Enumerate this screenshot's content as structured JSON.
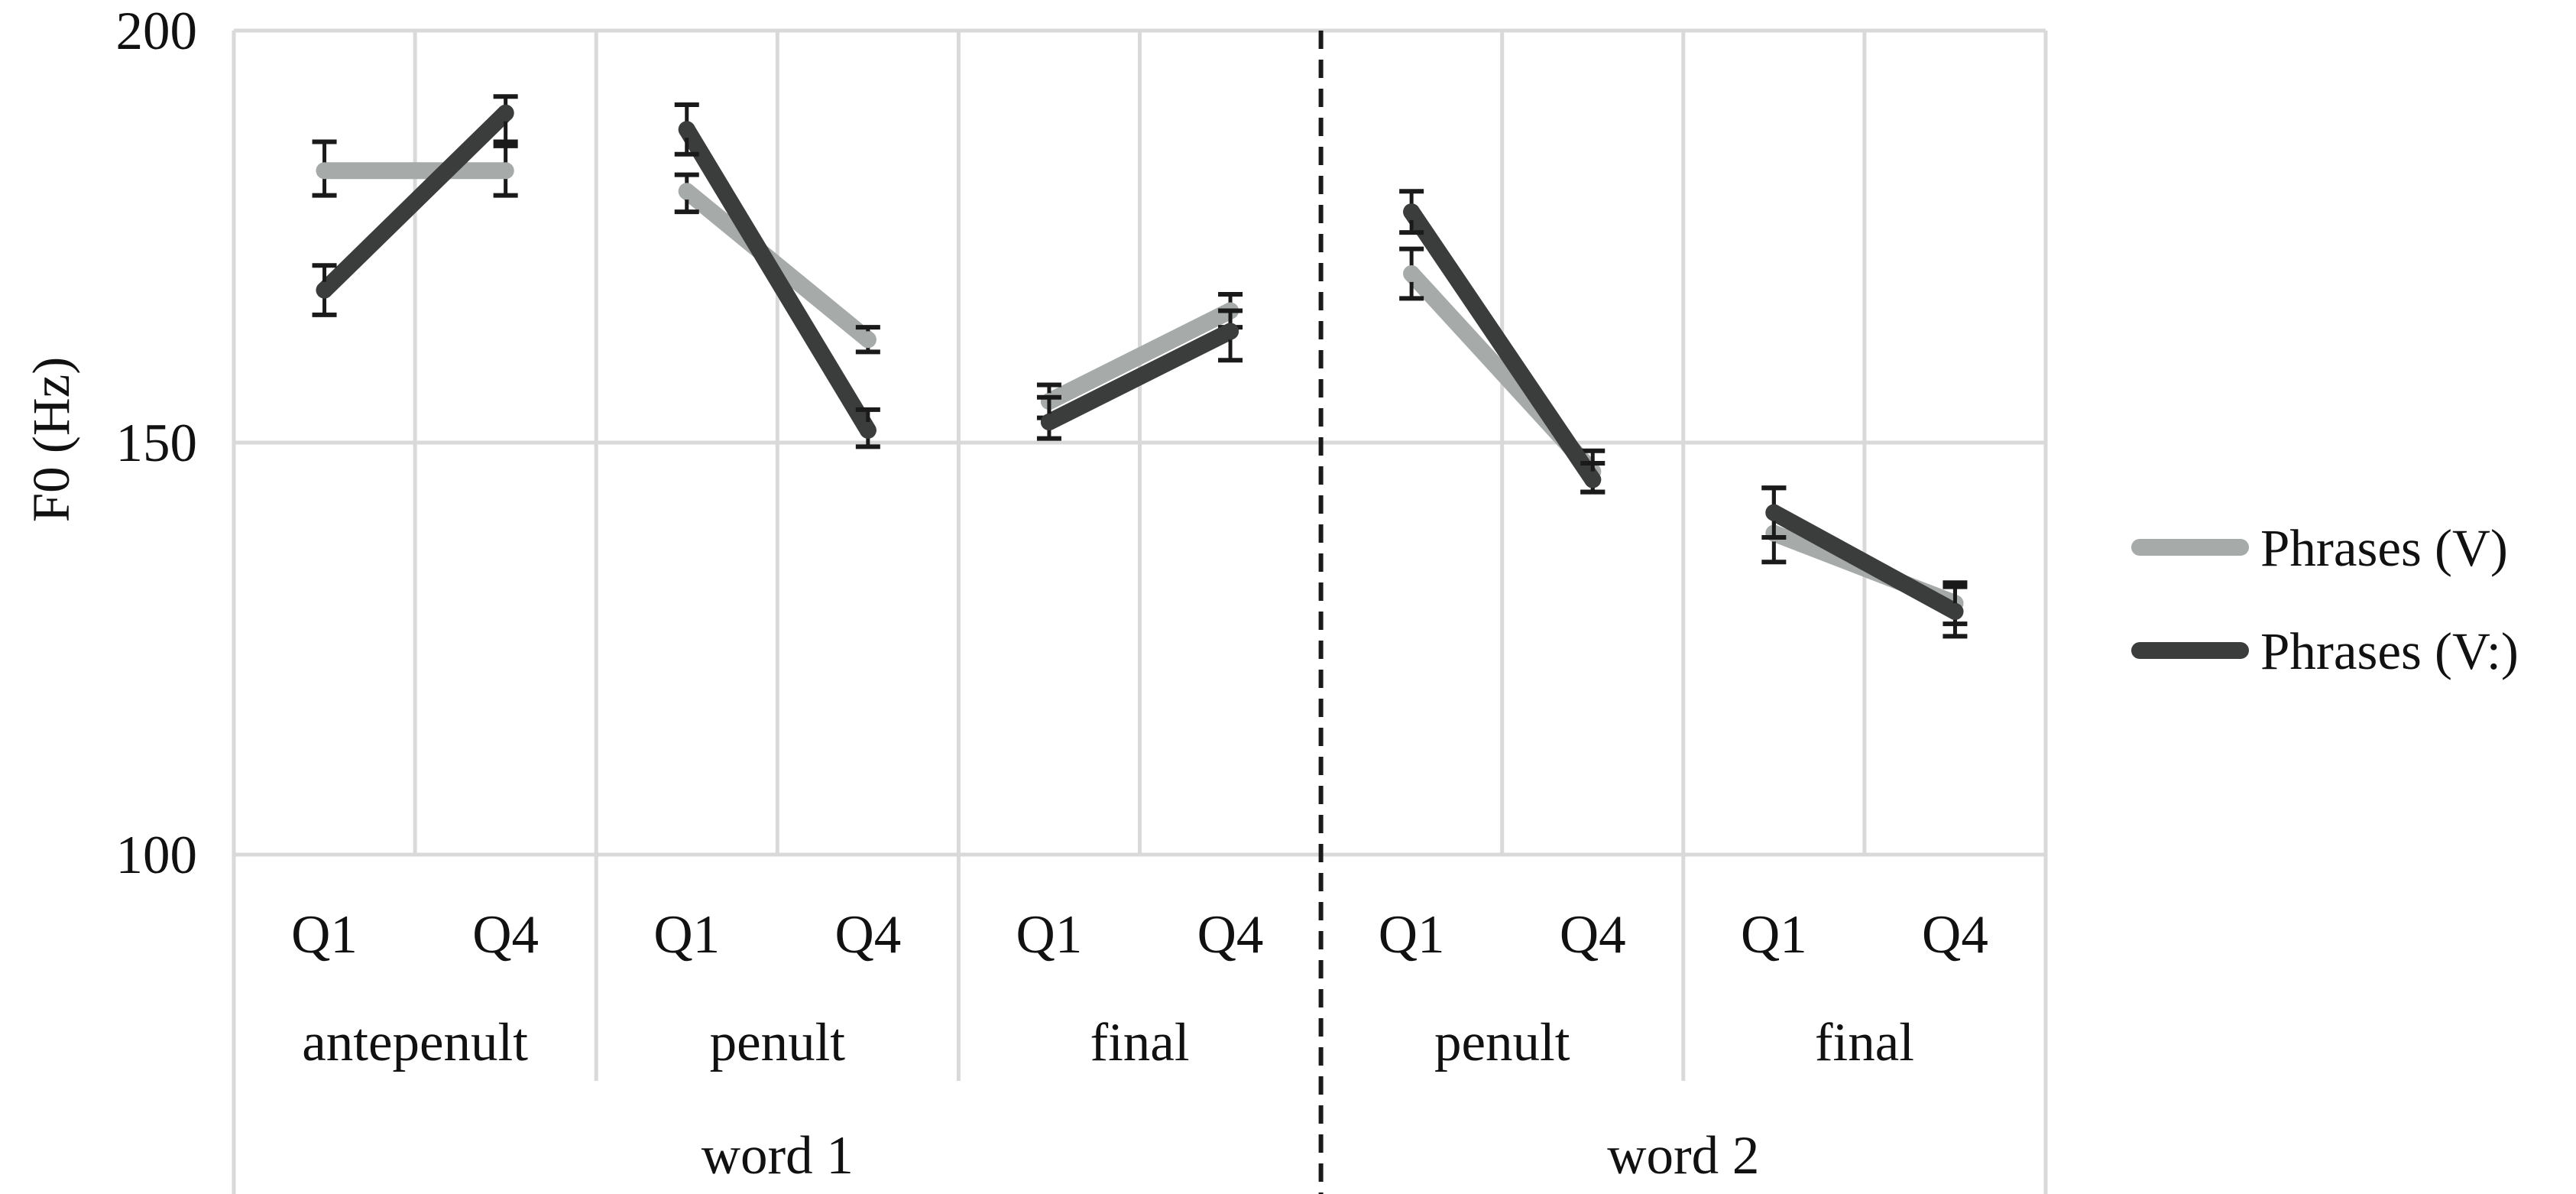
{
  "chart_data": {
    "type": "line",
    "ylabel": "F0 (Hz)",
    "ylim": [
      100,
      200
    ],
    "yticks": [
      100,
      150,
      200
    ],
    "grid": true,
    "legend_position": "right",
    "categories": [
      {
        "word": "word 1",
        "syllable": "antepenult",
        "quarter": "Q1"
      },
      {
        "word": "word 1",
        "syllable": "antepenult",
        "quarter": "Q4"
      },
      {
        "word": "word 1",
        "syllable": "penult",
        "quarter": "Q1"
      },
      {
        "word": "word 1",
        "syllable": "penult",
        "quarter": "Q4"
      },
      {
        "word": "word 1",
        "syllable": "final",
        "quarter": "Q1"
      },
      {
        "word": "word 1",
        "syllable": "final",
        "quarter": "Q4"
      },
      {
        "word": "word 2",
        "syllable": "penult",
        "quarter": "Q1"
      },
      {
        "word": "word 2",
        "syllable": "penult",
        "quarter": "Q4"
      },
      {
        "word": "word 2",
        "syllable": "final",
        "quarter": "Q1"
      },
      {
        "word": "word 2",
        "syllable": "final",
        "quarter": "Q4"
      }
    ],
    "syllable_groups": [
      {
        "label": "antepenult",
        "start": 0,
        "end": 1
      },
      {
        "label": "penult",
        "start": 2,
        "end": 3
      },
      {
        "label": "final",
        "start": 4,
        "end": 5
      },
      {
        "label": "penult",
        "start": 6,
        "end": 7
      },
      {
        "label": "final",
        "start": 8,
        "end": 9
      }
    ],
    "word_groups": [
      {
        "label": "word 1",
        "start": 0,
        "end": 5
      },
      {
        "label": "word 2",
        "start": 6,
        "end": 9
      }
    ],
    "word_boundary_after_index": 5,
    "series": [
      {
        "name": "Phrases (V)",
        "color": "#a6aaa9",
        "values": [
          183,
          183,
          180.5,
          162.5,
          155,
          166,
          170.5,
          146.5,
          139,
          130.5
        ],
        "err_low": [
          180,
          180,
          178,
          161,
          153,
          164,
          167.5,
          144,
          135.5,
          128
        ],
        "err_high": [
          186.5,
          186.5,
          182.5,
          164,
          157,
          168,
          173.5,
          149,
          144.5,
          133
        ]
      },
      {
        "name": "Phrases (V:)",
        "color": "#3b3c3c",
        "values": [
          168.5,
          190,
          188,
          151.5,
          152.5,
          163.5,
          178,
          145.5,
          141.5,
          129.5
        ],
        "err_low": [
          165.5,
          186,
          185,
          149.5,
          150.5,
          160,
          175.5,
          144,
          138.5,
          126.5
        ],
        "err_high": [
          171.5,
          192,
          191,
          154,
          155.5,
          166,
          180.5,
          147.5,
          144.5,
          132.5
        ]
      }
    ]
  }
}
